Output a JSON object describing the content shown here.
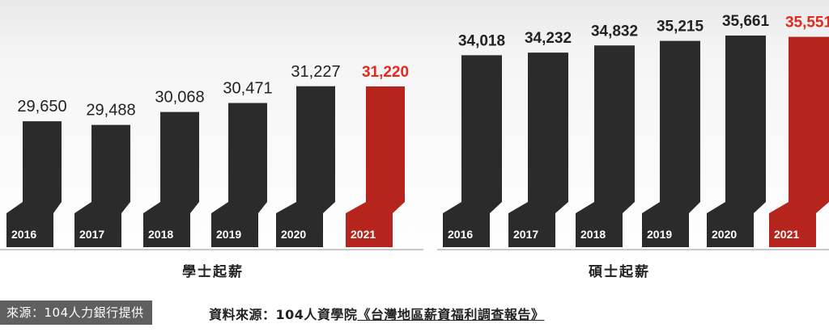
{
  "chart_data": [
    {
      "type": "bar",
      "title": "學士起薪",
      "categories": [
        "2016",
        "2017",
        "2018",
        "2019",
        "2020",
        "2021"
      ],
      "values": [
        29650,
        29488,
        30068,
        30471,
        31227,
        31220
      ],
      "value_labels": [
        "29,650",
        "29,488",
        "30,068",
        "30,471",
        "31,227",
        "31,220"
      ],
      "highlight_index": 5,
      "grid": false
    },
    {
      "type": "bar",
      "title": "碩士起薪",
      "categories": [
        "2016",
        "2017",
        "2018",
        "2019",
        "2020",
        "2021"
      ],
      "values": [
        34018,
        34232,
        34832,
        35215,
        35661,
        35551
      ],
      "value_labels": [
        "34,018",
        "34,232",
        "34,832",
        "35,215",
        "35,661",
        "35,551"
      ],
      "highlight_index": 5,
      "grid": false
    }
  ],
  "colors": {
    "bar": "#2b2b2b",
    "highlight": "#b5251d",
    "highlight_label": "#e02a1f",
    "label": "#222222"
  },
  "source": {
    "prefix": "資料來源：104人資學院",
    "title": "《台灣地區薪資福利調查報告》"
  },
  "credit": "來源：104人力銀行提供"
}
